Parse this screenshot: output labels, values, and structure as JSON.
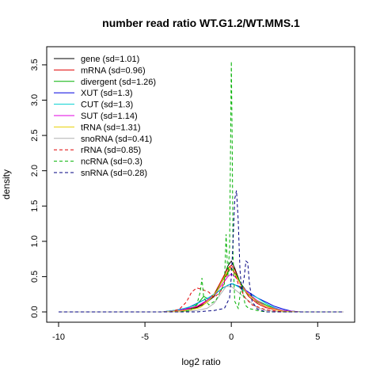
{
  "chart_data": {
    "type": "line",
    "title": "number read ratio WT.G1.2/WT.MMS.1",
    "xlabel": "log2 ratio",
    "ylabel": "density",
    "xlim": [
      -10,
      6.5
    ],
    "ylim": [
      0,
      3.6
    ],
    "x_ticks": [
      {
        "value": -10,
        "label": "-10"
      },
      {
        "value": -5,
        "label": "-5"
      },
      {
        "value": 0,
        "label": "0"
      },
      {
        "value": 5,
        "label": "5"
      }
    ],
    "y_ticks": [
      {
        "value": 0,
        "label": "0.0"
      },
      {
        "value": 0.5,
        "label": "0.5"
      },
      {
        "value": 1.0,
        "label": "1.0"
      },
      {
        "value": 1.5,
        "label": "1.5"
      },
      {
        "value": 2.0,
        "label": "2.0"
      },
      {
        "value": 2.5,
        "label": "2.5"
      },
      {
        "value": 3.0,
        "label": "3.0"
      },
      {
        "value": 3.5,
        "label": "3.5"
      }
    ],
    "grid": false,
    "legend_position": "top-left",
    "series": [
      {
        "name": "gene (sd=1.01)",
        "color": "#000000",
        "dash": "solid",
        "points": [
          [
            -10,
            0
          ],
          [
            -4,
            0
          ],
          [
            -3,
            0.02
          ],
          [
            -2,
            0.06
          ],
          [
            -1.5,
            0.12
          ],
          [
            -1,
            0.22
          ],
          [
            -0.5,
            0.45
          ],
          [
            -0.2,
            0.65
          ],
          [
            0,
            0.72
          ],
          [
            0.2,
            0.62
          ],
          [
            0.5,
            0.42
          ],
          [
            1,
            0.25
          ],
          [
            1.5,
            0.14
          ],
          [
            2,
            0.08
          ],
          [
            3,
            0.02
          ],
          [
            4,
            0
          ],
          [
            6.5,
            0
          ]
        ]
      },
      {
        "name": "mRNA (sd=0.96)",
        "color": "#e00000",
        "dash": "solid",
        "points": [
          [
            -10,
            0
          ],
          [
            -4,
            0
          ],
          [
            -3,
            0.02
          ],
          [
            -2,
            0.07
          ],
          [
            -1.5,
            0.14
          ],
          [
            -1,
            0.25
          ],
          [
            -0.5,
            0.48
          ],
          [
            -0.2,
            0.62
          ],
          [
            0,
            0.66
          ],
          [
            0.2,
            0.6
          ],
          [
            0.5,
            0.4
          ],
          [
            1,
            0.22
          ],
          [
            1.5,
            0.12
          ],
          [
            2,
            0.06
          ],
          [
            3,
            0.01
          ],
          [
            4,
            0
          ],
          [
            6.5,
            0
          ]
        ]
      },
      {
        "name": "divergent (sd=1.26)",
        "color": "#00b000",
        "dash": "solid",
        "points": [
          [
            -10,
            0
          ],
          [
            -4,
            0
          ],
          [
            -3,
            0.03
          ],
          [
            -2,
            0.1
          ],
          [
            -1.6,
            0.22
          ],
          [
            -1.3,
            0.18
          ],
          [
            -1,
            0.24
          ],
          [
            -0.6,
            0.4
          ],
          [
            -0.2,
            0.56
          ],
          [
            0,
            0.62
          ],
          [
            0.3,
            0.52
          ],
          [
            0.7,
            0.34
          ],
          [
            1,
            0.24
          ],
          [
            1.5,
            0.16
          ],
          [
            2,
            0.1
          ],
          [
            2.5,
            0.05
          ],
          [
            3,
            0.02
          ],
          [
            4,
            0
          ],
          [
            6.5,
            0
          ]
        ]
      },
      {
        "name": "XUT (sd=1.3)",
        "color": "#0000e0",
        "dash": "solid",
        "points": [
          [
            -10,
            0
          ],
          [
            -4,
            0
          ],
          [
            -3.3,
            0.02
          ],
          [
            -2.5,
            0.06
          ],
          [
            -2,
            0.12
          ],
          [
            -1.5,
            0.18
          ],
          [
            -1,
            0.24
          ],
          [
            -0.5,
            0.34
          ],
          [
            0,
            0.4
          ],
          [
            0.5,
            0.36
          ],
          [
            1,
            0.28
          ],
          [
            1.5,
            0.2
          ],
          [
            2,
            0.14
          ],
          [
            2.5,
            0.08
          ],
          [
            3,
            0.04
          ],
          [
            3.5,
            0.01
          ],
          [
            4,
            0
          ],
          [
            6.5,
            0
          ]
        ]
      },
      {
        "name": "CUT (sd=1.3)",
        "color": "#00d0d0",
        "dash": "solid",
        "points": [
          [
            -10,
            0
          ],
          [
            -4,
            0
          ],
          [
            -3,
            0.03
          ],
          [
            -2.3,
            0.08
          ],
          [
            -1.8,
            0.14
          ],
          [
            -1.2,
            0.22
          ],
          [
            -0.6,
            0.32
          ],
          [
            -0.2,
            0.38
          ],
          [
            0.1,
            0.4
          ],
          [
            0.5,
            0.34
          ],
          [
            1,
            0.26
          ],
          [
            1.5,
            0.2
          ],
          [
            2,
            0.12
          ],
          [
            2.5,
            0.06
          ],
          [
            3,
            0.02
          ],
          [
            4,
            0
          ],
          [
            6.5,
            0
          ]
        ]
      },
      {
        "name": "SUT (sd=1.14)",
        "color": "#e000e0",
        "dash": "solid",
        "points": [
          [
            -10,
            0
          ],
          [
            -4,
            0
          ],
          [
            -3,
            0.02
          ],
          [
            -2,
            0.08
          ],
          [
            -1.5,
            0.15
          ],
          [
            -1,
            0.24
          ],
          [
            -0.5,
            0.4
          ],
          [
            -0.2,
            0.5
          ],
          [
            0,
            0.54
          ],
          [
            0.3,
            0.48
          ],
          [
            0.7,
            0.34
          ],
          [
            1,
            0.26
          ],
          [
            1.5,
            0.16
          ],
          [
            2,
            0.08
          ],
          [
            3,
            0.02
          ],
          [
            4,
            0
          ],
          [
            6.5,
            0
          ]
        ]
      },
      {
        "name": "tRNA (sd=1.31)",
        "color": "#e8d000",
        "dash": "solid",
        "points": [
          [
            -10,
            0
          ],
          [
            -4,
            0
          ],
          [
            -2.5,
            0.02
          ],
          [
            -1.8,
            0.06
          ],
          [
            -1.3,
            0.16
          ],
          [
            -0.8,
            0.3
          ],
          [
            -0.4,
            0.5
          ],
          [
            -0.1,
            0.62
          ],
          [
            0.1,
            0.58
          ],
          [
            0.4,
            0.45
          ],
          [
            0.8,
            0.3
          ],
          [
            1.2,
            0.2
          ],
          [
            1.8,
            0.1
          ],
          [
            2.5,
            0.04
          ],
          [
            3,
            0.01
          ],
          [
            4,
            0
          ],
          [
            6.5,
            0
          ]
        ]
      },
      {
        "name": "snoRNA (sd=0.41)",
        "color": "#b0b0b0",
        "dash": "solid",
        "points": [
          [
            -10,
            0
          ],
          [
            -3,
            0
          ],
          [
            -2,
            0.02
          ],
          [
            -1.4,
            0.05
          ],
          [
            -1,
            0.12
          ],
          [
            -0.6,
            0.26
          ],
          [
            -0.3,
            0.36
          ],
          [
            0,
            0.36
          ],
          [
            0.3,
            0.3
          ],
          [
            0.6,
            0.24
          ],
          [
            1,
            0.16
          ],
          [
            1.5,
            0.06
          ],
          [
            2,
            0.02
          ],
          [
            3,
            0
          ],
          [
            6.5,
            0
          ]
        ]
      },
      {
        "name": "rRNA (sd=0.85)",
        "color": "#e00000",
        "dash": "dashed",
        "points": [
          [
            -10,
            0
          ],
          [
            -3.5,
            0
          ],
          [
            -3,
            0.04
          ],
          [
            -2.6,
            0.14
          ],
          [
            -2.3,
            0.28
          ],
          [
            -2,
            0.34
          ],
          [
            -1.7,
            0.32
          ],
          [
            -1.3,
            0.28
          ],
          [
            -1,
            0.2
          ],
          [
            -0.6,
            0.3
          ],
          [
            -0.3,
            0.5
          ],
          [
            -0.1,
            0.64
          ],
          [
            0.1,
            0.6
          ],
          [
            0.4,
            0.4
          ],
          [
            0.8,
            0.2
          ],
          [
            1.2,
            0.1
          ],
          [
            2,
            0.03
          ],
          [
            3,
            0
          ],
          [
            6.5,
            0
          ]
        ]
      },
      {
        "name": "ncRNA (sd=0.3)",
        "color": "#00b000",
        "dash": "dashed",
        "points": [
          [
            -10,
            0
          ],
          [
            -3,
            0
          ],
          [
            -2.4,
            0.02
          ],
          [
            -2,
            0.1
          ],
          [
            -1.8,
            0.28
          ],
          [
            -1.7,
            0.48
          ],
          [
            -1.6,
            0.2
          ],
          [
            -1.3,
            0.1
          ],
          [
            -0.9,
            0.16
          ],
          [
            -0.4,
            0.4
          ],
          [
            -0.3,
            1.1
          ],
          [
            -0.2,
            0.5
          ],
          [
            -0.1,
            0.9
          ],
          [
            -0.05,
            2.2
          ],
          [
            0,
            3.55
          ],
          [
            0.05,
            2.4
          ],
          [
            0.1,
            0.8
          ],
          [
            0.2,
            0.15
          ],
          [
            0.4,
            0.05
          ],
          [
            0.6,
            0.4
          ],
          [
            0.8,
            0.1
          ],
          [
            1,
            0.05
          ],
          [
            1.5,
            0.02
          ],
          [
            2,
            0
          ],
          [
            6.5,
            0
          ]
        ]
      },
      {
        "name": "snRNA (sd=0.28)",
        "color": "#000080",
        "dash": "dashed",
        "points": [
          [
            -10,
            0
          ],
          [
            -2,
            0
          ],
          [
            -1,
            0.02
          ],
          [
            -0.4,
            0.05
          ],
          [
            -0.1,
            0.2
          ],
          [
            0,
            0.5
          ],
          [
            0.1,
            1.0
          ],
          [
            0.2,
            1.6
          ],
          [
            0.3,
            1.72
          ],
          [
            0.4,
            1.3
          ],
          [
            0.5,
            0.6
          ],
          [
            0.6,
            0.3
          ],
          [
            0.75,
            0.5
          ],
          [
            0.85,
            0.72
          ],
          [
            0.95,
            0.7
          ],
          [
            1.05,
            0.4
          ],
          [
            1.2,
            0.15
          ],
          [
            1.5,
            0.04
          ],
          [
            2,
            0
          ],
          [
            6.5,
            0
          ]
        ]
      }
    ]
  }
}
